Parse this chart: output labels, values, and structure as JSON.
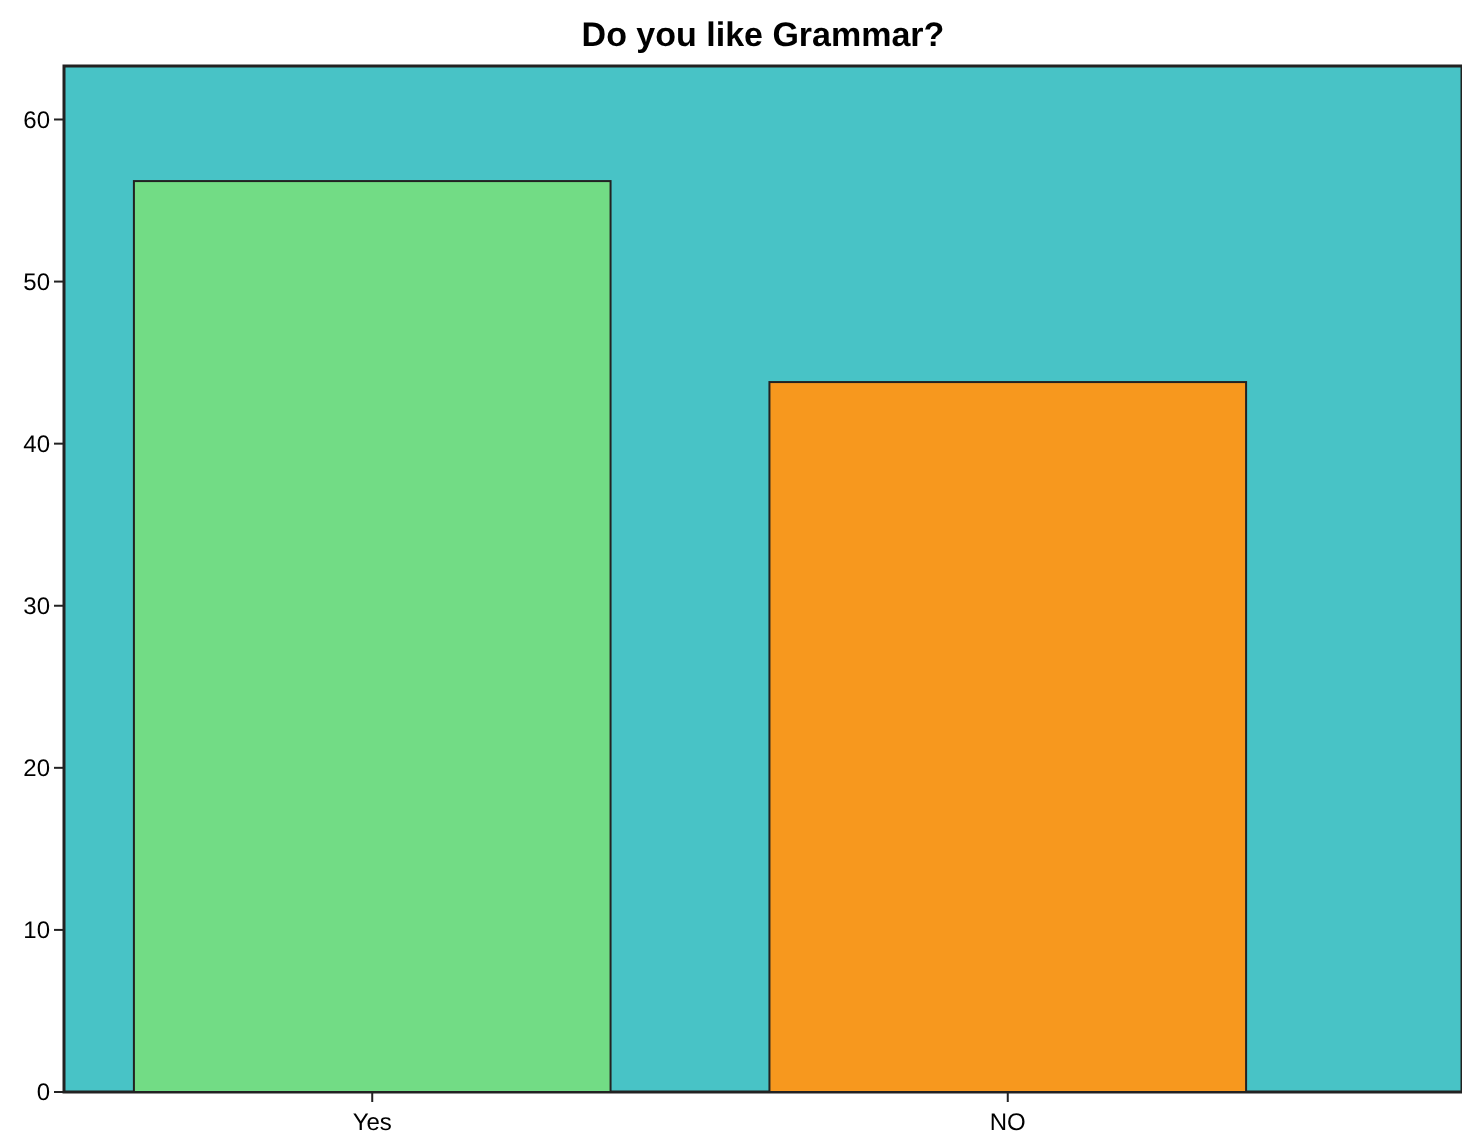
{
  "chart_data": {
    "type": "bar",
    "title": "Do you like Grammar?",
    "categories": [
      "Yes",
      "NO"
    ],
    "values": [
      56.2,
      43.8
    ],
    "colors": [
      "#72dc85",
      "#f7981e"
    ],
    "ylim": [
      0,
      63.3
    ],
    "yticks": [
      0,
      10,
      20,
      30,
      40,
      50,
      60
    ],
    "grid": false
  }
}
